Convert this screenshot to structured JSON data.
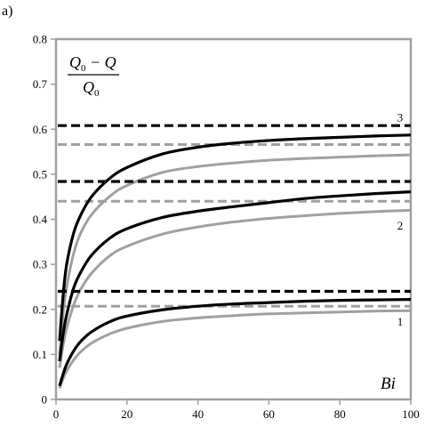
{
  "panel_label": "a)",
  "chart_data": {
    "type": "line",
    "title": "",
    "xlabel": "Bi",
    "ylabel": {
      "numerator": "Q",
      "numerator_sub": "0",
      "numerator_rest": " − Q",
      "denominator": "Q",
      "denominator_sub": "0"
    },
    "xlim": [
      0,
      100
    ],
    "ylim": [
      0,
      0.8
    ],
    "xticks": [
      "0",
      "20",
      "40",
      "60",
      "80",
      "100"
    ],
    "yticks": [
      "0",
      "0.1",
      "0.2",
      "0.3",
      "0.4",
      "0.5",
      "0.6",
      "0.7",
      "0.8"
    ],
    "grid": false,
    "x": [
      1,
      2,
      3,
      5,
      7,
      10,
      15,
      20,
      30,
      40,
      50,
      60,
      70,
      80,
      90,
      100
    ],
    "series": [
      {
        "group": "1",
        "style": "solid",
        "color": "#000000",
        "values": [
          0.03,
          0.056,
          0.078,
          0.108,
          0.129,
          0.15,
          0.172,
          0.185,
          0.199,
          0.207,
          0.212,
          0.215,
          0.218,
          0.22,
          0.221,
          0.222
        ]
      },
      {
        "group": "1",
        "style": "solid",
        "color": "#a0a0a0",
        "values": [
          0.025,
          0.046,
          0.063,
          0.088,
          0.106,
          0.125,
          0.145,
          0.158,
          0.173,
          0.181,
          0.186,
          0.19,
          0.192,
          0.194,
          0.196,
          0.197
        ]
      },
      {
        "group": "1",
        "style": "dashed",
        "color": "#000000",
        "values": [
          0.24,
          0.24,
          0.24,
          0.24,
          0.24,
          0.24,
          0.24,
          0.24,
          0.24,
          0.24,
          0.24,
          0.24,
          0.24,
          0.24,
          0.24,
          0.24
        ]
      },
      {
        "group": "1",
        "style": "dashed",
        "color": "#a0a0a0",
        "values": [
          0.207,
          0.207,
          0.207,
          0.207,
          0.207,
          0.207,
          0.207,
          0.207,
          0.207,
          0.207,
          0.207,
          0.207,
          0.207,
          0.207,
          0.207,
          0.207
        ]
      },
      {
        "group": "2",
        "style": "solid",
        "color": "#000000",
        "values": [
          0.085,
          0.145,
          0.188,
          0.248,
          0.283,
          0.32,
          0.357,
          0.379,
          0.404,
          0.418,
          0.428,
          0.437,
          0.446,
          0.452,
          0.457,
          0.461
        ]
      },
      {
        "group": "2",
        "style": "solid",
        "color": "#a0a0a0",
        "values": [
          0.07,
          0.12,
          0.158,
          0.21,
          0.245,
          0.28,
          0.318,
          0.34,
          0.367,
          0.383,
          0.394,
          0.402,
          0.408,
          0.413,
          0.417,
          0.42
        ]
      },
      {
        "group": "2",
        "style": "dashed",
        "color": "#000000",
        "values": [
          0.484,
          0.484,
          0.484,
          0.484,
          0.484,
          0.484,
          0.484,
          0.484,
          0.484,
          0.484,
          0.484,
          0.484,
          0.484,
          0.484,
          0.484,
          0.484
        ]
      },
      {
        "group": "2",
        "style": "dashed",
        "color": "#a0a0a0",
        "values": [
          0.44,
          0.44,
          0.44,
          0.44,
          0.44,
          0.44,
          0.44,
          0.44,
          0.44,
          0.44,
          0.44,
          0.44,
          0.44,
          0.44,
          0.44,
          0.44
        ]
      },
      {
        "group": "3",
        "style": "solid",
        "color": "#000000",
        "values": [
          0.13,
          0.23,
          0.3,
          0.37,
          0.41,
          0.45,
          0.49,
          0.515,
          0.545,
          0.56,
          0.569,
          0.575,
          0.579,
          0.582,
          0.585,
          0.587
        ]
      },
      {
        "group": "3",
        "style": "solid",
        "color": "#a0a0a0",
        "values": [
          0.1,
          0.19,
          0.25,
          0.325,
          0.37,
          0.41,
          0.45,
          0.475,
          0.504,
          0.517,
          0.525,
          0.531,
          0.535,
          0.538,
          0.541,
          0.543
        ]
      },
      {
        "group": "3",
        "style": "dashed",
        "color": "#000000",
        "values": [
          0.608,
          0.608,
          0.608,
          0.608,
          0.608,
          0.608,
          0.608,
          0.608,
          0.608,
          0.608,
          0.608,
          0.608,
          0.608,
          0.608,
          0.608,
          0.608
        ]
      },
      {
        "group": "3",
        "style": "dashed",
        "color": "#a0a0a0",
        "values": [
          0.566,
          0.566,
          0.566,
          0.566,
          0.566,
          0.566,
          0.566,
          0.566,
          0.566,
          0.566,
          0.566,
          0.566,
          0.566,
          0.566,
          0.566,
          0.566
        ]
      }
    ],
    "annotations": [
      {
        "text": "1",
        "x": 97,
        "y": 0.172
      },
      {
        "text": "2",
        "x": 97,
        "y": 0.385
      },
      {
        "text": "3",
        "x": 97,
        "y": 0.625
      }
    ],
    "colors": {
      "axis": "#a0a0a0",
      "primary": "#000000",
      "secondary": "#a0a0a0"
    }
  }
}
